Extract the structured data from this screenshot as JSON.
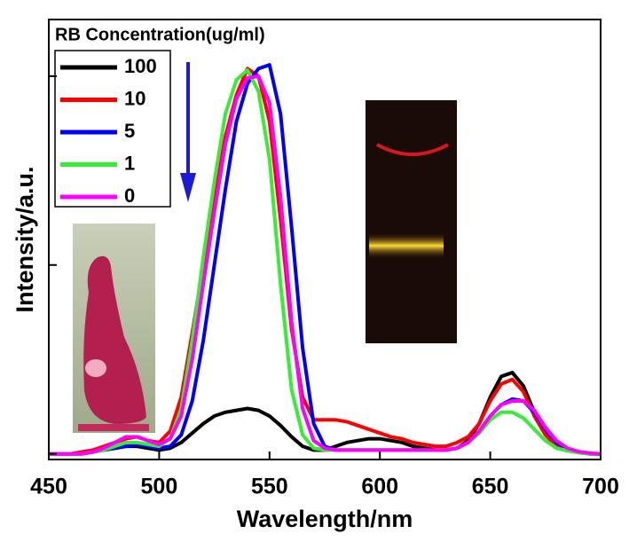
{
  "chart_data": {
    "type": "line",
    "xlabel": "Wavelength/nm",
    "ylabel": "Intensity/a.u.",
    "legend_title": "RB Concentration(ug/ml)",
    "x": [
      450,
      455,
      460,
      465,
      470,
      475,
      480,
      485,
      490,
      495,
      500,
      505,
      510,
      515,
      520,
      525,
      530,
      535,
      540,
      545,
      550,
      555,
      560,
      565,
      570,
      575,
      580,
      585,
      590,
      595,
      600,
      605,
      610,
      615,
      620,
      625,
      630,
      635,
      640,
      645,
      650,
      655,
      660,
      665,
      670,
      675,
      680,
      685,
      690,
      695,
      700
    ],
    "series": [
      {
        "name": "100",
        "color": "#000000",
        "values": [
          0,
          0,
          0,
          0,
          0.005,
          0.01,
          0.015,
          0.02,
          0.02,
          0.015,
          0.01,
          0.015,
          0.03,
          0.055,
          0.08,
          0.1,
          0.11,
          0.115,
          0.12,
          0.115,
          0.1,
          0.075,
          0.045,
          0.02,
          0.01,
          0.01,
          0.02,
          0.03,
          0.035,
          0.04,
          0.04,
          0.035,
          0.03,
          0.02,
          0.015,
          0.01,
          0.01,
          0.015,
          0.035,
          0.08,
          0.15,
          0.205,
          0.215,
          0.18,
          0.11,
          0.055,
          0.025,
          0.01,
          0.005,
          0,
          0
        ]
      },
      {
        "name": "10",
        "color": "#ff0000",
        "values": [
          0,
          0,
          0,
          0.005,
          0.01,
          0.02,
          0.03,
          0.04,
          0.045,
          0.035,
          0.03,
          0.06,
          0.15,
          0.32,
          0.5,
          0.68,
          0.84,
          0.95,
          1.02,
          1.0,
          0.88,
          0.62,
          0.33,
          0.15,
          0.09,
          0.09,
          0.09,
          0.085,
          0.075,
          0.065,
          0.055,
          0.045,
          0.04,
          0.03,
          0.025,
          0.02,
          0.02,
          0.03,
          0.045,
          0.08,
          0.14,
          0.185,
          0.197,
          0.165,
          0.1,
          0.05,
          0.02,
          0.01,
          0.005,
          0,
          0
        ]
      },
      {
        "name": "5",
        "color": "#0000ff",
        "values": [
          0,
          0,
          0,
          0,
          0.005,
          0.01,
          0.015,
          0.02,
          0.025,
          0.02,
          0.015,
          0.02,
          0.05,
          0.14,
          0.3,
          0.5,
          0.7,
          0.88,
          0.98,
          1.02,
          1.03,
          0.9,
          0.6,
          0.28,
          0.08,
          0.02,
          0.01,
          0.01,
          0.01,
          0.01,
          0.01,
          0.01,
          0.01,
          0.01,
          0.01,
          0.01,
          0.01,
          0.015,
          0.03,
          0.06,
          0.1,
          0.13,
          0.145,
          0.14,
          0.11,
          0.065,
          0.03,
          0.012,
          0.005,
          0,
          0
        ]
      },
      {
        "name": "1",
        "color": "#33ee33",
        "values": [
          0,
          0,
          0,
          0,
          0.005,
          0.01,
          0.02,
          0.03,
          0.03,
          0.025,
          0.02,
          0.04,
          0.12,
          0.3,
          0.52,
          0.72,
          0.9,
          0.99,
          1.016,
          0.96,
          0.78,
          0.45,
          0.17,
          0.05,
          0.015,
          0.01,
          0.01,
          0.01,
          0.01,
          0.01,
          0.01,
          0.01,
          0.01,
          0.01,
          0.01,
          0.01,
          0.01,
          0.015,
          0.03,
          0.055,
          0.09,
          0.11,
          0.11,
          0.095,
          0.065,
          0.035,
          0.015,
          0.008,
          0.003,
          0,
          0
        ]
      },
      {
        "name": "0",
        "color": "#ff00ff",
        "values": [
          0,
          0,
          0,
          0,
          0.005,
          0.015,
          0.03,
          0.045,
          0.045,
          0.035,
          0.025,
          0.04,
          0.1,
          0.25,
          0.45,
          0.64,
          0.82,
          0.94,
          0.995,
          1.0,
          0.93,
          0.68,
          0.35,
          0.12,
          0.035,
          0.015,
          0.01,
          0.01,
          0.01,
          0.01,
          0.01,
          0.01,
          0.01,
          0.01,
          0.01,
          0.01,
          0.01,
          0.015,
          0.03,
          0.06,
          0.1,
          0.13,
          0.14,
          0.14,
          0.115,
          0.07,
          0.035,
          0.015,
          0.006,
          0.002,
          0
        ]
      }
    ],
    "xlim": [
      450,
      700
    ],
    "xticks": [
      450,
      500,
      550,
      600,
      650,
      700
    ],
    "ylim": [
      -0.015,
      1.15
    ],
    "yticks": [
      0,
      0.5,
      1
    ]
  }
}
